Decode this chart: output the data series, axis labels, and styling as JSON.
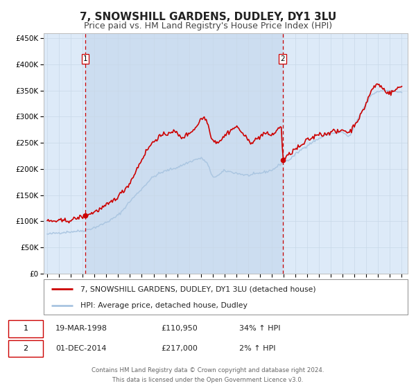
{
  "title": "7, SNOWSHILL GARDENS, DUDLEY, DY1 3LU",
  "subtitle": "Price paid vs. HM Land Registry's House Price Index (HPI)",
  "ylim": [
    0,
    460000
  ],
  "yticks": [
    0,
    50000,
    100000,
    150000,
    200000,
    250000,
    300000,
    350000,
    400000,
    450000
  ],
  "ytick_labels": [
    "£0",
    "£50K",
    "£100K",
    "£150K",
    "£200K",
    "£250K",
    "£300K",
    "£350K",
    "£400K",
    "£450K"
  ],
  "x_start_year": 1995,
  "x_end_year": 2025,
  "hpi_color": "#a8c4e0",
  "price_color": "#cc0000",
  "chart_bg_color": "#ddeaf8",
  "fig_bg_color": "#ffffff",
  "sale1_date": 1998.21,
  "sale1_price": 110950,
  "sale2_date": 2014.92,
  "sale2_price": 217000,
  "legend_line1": "7, SNOWSHILL GARDENS, DUDLEY, DY1 3LU (detached house)",
  "legend_line2": "HPI: Average price, detached house, Dudley",
  "table_row1_num": "1",
  "table_row1_date": "19-MAR-1998",
  "table_row1_price": "£110,950",
  "table_row1_hpi": "34% ↑ HPI",
  "table_row2_num": "2",
  "table_row2_date": "01-DEC-2014",
  "table_row2_price": "£217,000",
  "table_row2_hpi": "2% ↑ HPI",
  "footer_line1": "Contains HM Land Registry data © Crown copyright and database right 2024.",
  "footer_line2": "This data is licensed under the Open Government Licence v3.0.",
  "vline_color": "#cc0000",
  "grid_color": "#c8d8e8",
  "title_fontsize": 11,
  "subtitle_fontsize": 9
}
